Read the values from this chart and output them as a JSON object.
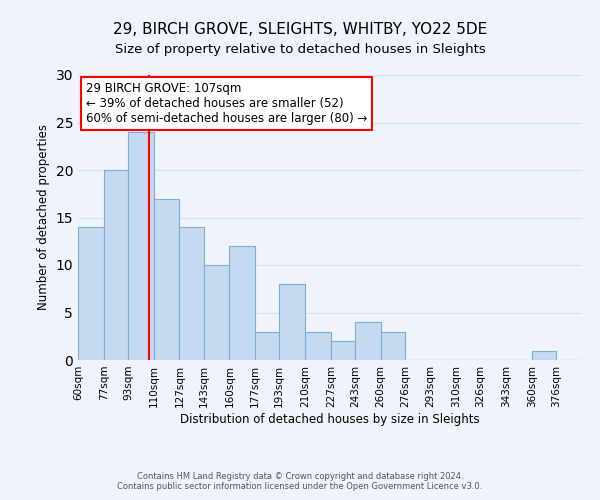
{
  "title": "29, BIRCH GROVE, SLEIGHTS, WHITBY, YO22 5DE",
  "subtitle": "Size of property relative to detached houses in Sleights",
  "xlabel": "Distribution of detached houses by size in Sleights",
  "ylabel": "Number of detached properties",
  "footer_line1": "Contains HM Land Registry data © Crown copyright and database right 2024.",
  "footer_line2": "Contains public sector information licensed under the Open Government Licence v3.0.",
  "annotation_line1": "29 BIRCH GROVE: 107sqm",
  "annotation_line2": "← 39% of detached houses are smaller (52)",
  "annotation_line3": "60% of semi-detached houses are larger (80) →",
  "bin_edges": [
    60,
    77,
    93,
    110,
    127,
    143,
    160,
    177,
    193,
    210,
    227,
    243,
    260,
    276,
    293,
    310,
    326,
    343,
    360,
    376,
    393
  ],
  "bar_heights": [
    14,
    20,
    24,
    17,
    14,
    10,
    12,
    3,
    8,
    3,
    2,
    4,
    3,
    0,
    0,
    0,
    0,
    0,
    1,
    0
  ],
  "bar_color": "#c5d9f1",
  "bar_edge_color": "#7bafd4",
  "property_line_x": 107,
  "property_line_color": "red",
  "annotation_box_edge_color": "red",
  "ylim": [
    0,
    30
  ],
  "yticks": [
    0,
    5,
    10,
    15,
    20,
    25,
    30
  ],
  "grid_color": "#d0e4f5",
  "background_color": "#eef3fc",
  "tick_label_fontsize": 7.5,
  "title_fontsize": 11,
  "subtitle_fontsize": 9.5,
  "annotation_fontsize": 8.5,
  "ylabel_fontsize": 8.5,
  "xlabel_fontsize": 8.5,
  "footer_fontsize": 6.0
}
